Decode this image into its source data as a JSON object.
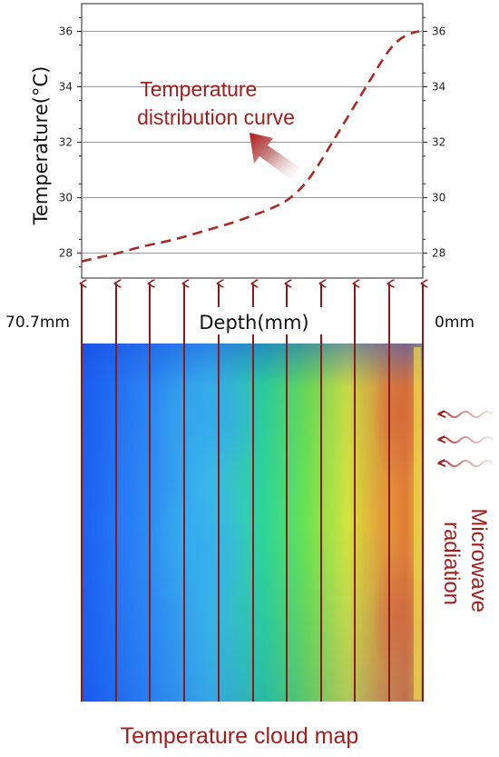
{
  "chart_data": {
    "type": "line",
    "title": "",
    "ylabel": "Temperature(°C)",
    "xlabel": "Depth(mm)",
    "x_left_label": "70.7mm",
    "x_right_label": "0mm",
    "ylim": [
      27.1,
      37.0
    ],
    "yticks": [
      28,
      30,
      32,
      34,
      36
    ],
    "xlim": [
      70.7,
      0
    ],
    "grid": true,
    "series": [
      {
        "name": "",
        "x": [
          70.7,
          67,
          63,
          59,
          55,
          51,
          47,
          43,
          39,
          35,
          31,
          27.5,
          24,
          21,
          18,
          15,
          12,
          9,
          6.5,
          4,
          1.5,
          0
        ],
        "y": [
          27.7,
          27.85,
          28.0,
          28.2,
          28.35,
          28.5,
          28.7,
          28.9,
          29.1,
          29.35,
          29.6,
          29.9,
          30.45,
          31.2,
          32.05,
          32.9,
          33.75,
          34.6,
          35.3,
          35.75,
          35.95,
          36.0
        ]
      }
    ],
    "annotation": "Temperature\ndistribution curve",
    "cloud_map_label": "Temperature cloud map",
    "radiation_label": "Microwave\nradiation"
  },
  "colors": {
    "curve": "#a52a2a",
    "annotation": "#a02020",
    "arrows": "#8b1a1a",
    "grid": "#9a9a9a"
  }
}
